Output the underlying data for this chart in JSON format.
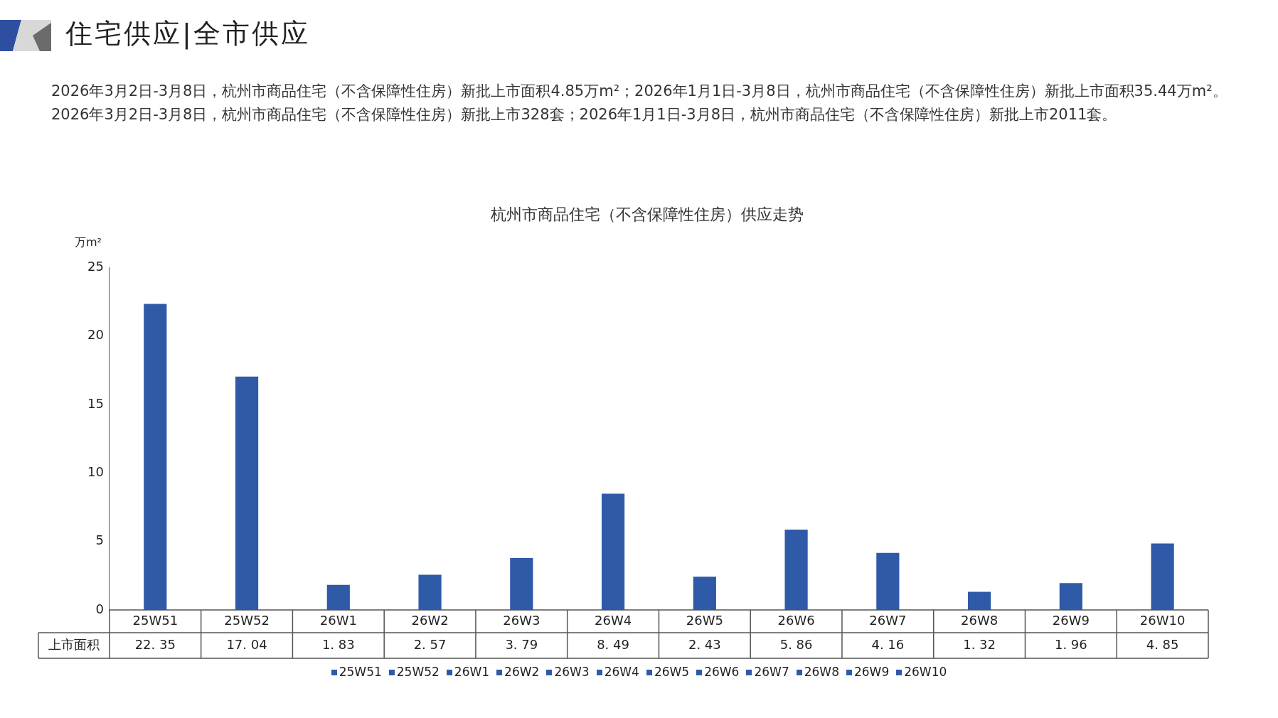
{
  "chart_data": {
    "type": "bar",
    "title": "住宅供应|全市供应",
    "subtitle": "杭州市商品住宅（不含保障性住房）供应走势",
    "annotations": [
      "2026年3月2日-3月8日，杭州市商品住宅（不含保障性住房）新批上市面积4.85万m²；2026年1月1日-3月8日，杭州市商品住宅（不含保障性住房）新批上市面积35.44万m²。2026年3月2日-3月8日，杭州市商品住宅（不含保障性住房）新批上市328套；2026年1月1日-3月8日，杭州市商品住宅（不含保障性住房）新批上市2011套。"
    ],
    "ylabel": "万m²",
    "categories": [
      "25W51",
      "25W52",
      "26W1",
      "26W2",
      "26W3",
      "26W4",
      "26W5",
      "26W6",
      "26W7",
      "26W8",
      "26W9",
      "26W10"
    ],
    "series": [
      {
        "name": "上市面积",
        "color": "#2e5aa8",
        "values": [
          22.35,
          17.04,
          1.83,
          2.57,
          3.79,
          8.49,
          2.43,
          5.86,
          4.16,
          1.32,
          1.96,
          4.85
        ]
      }
    ],
    "value_labels": [
      "22. 35",
      "17. 04",
      "1. 83",
      "2. 57",
      "3. 79",
      "8. 49",
      "2. 43",
      "5. 86",
      "4. 16",
      "1. 32",
      "1. 96",
      "4. 85"
    ],
    "ylim": [
      0,
      25
    ],
    "yticks": [
      0,
      5,
      10,
      15,
      20,
      25
    ],
    "grid": false,
    "legend": "bottom",
    "data_labels": true
  }
}
